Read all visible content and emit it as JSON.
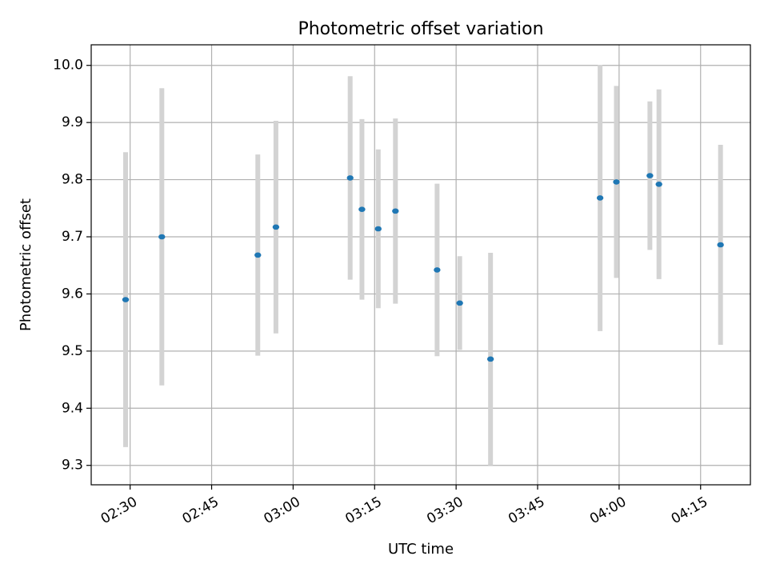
{
  "chart_data": {
    "type": "scatter",
    "title": "Photometric offset variation",
    "xlabel": "UTC time",
    "ylabel": "Photometric offset",
    "x_ticks": [
      "02:30",
      "02:45",
      "03:00",
      "03:15",
      "03:30",
      "03:45",
      "04:00",
      "04:15"
    ],
    "y_ticks": [
      "9.3",
      "9.4",
      "9.5",
      "9.6",
      "9.7",
      "9.8",
      "9.9",
      "10.0"
    ],
    "xlim": [
      "02:22:50",
      "04:24:10"
    ],
    "ylim": [
      9.266,
      10.036
    ],
    "grid": true,
    "colors": {
      "points": "#1f77b4",
      "errorbars": "#d3d3d3",
      "grid": "#b0b0b0"
    },
    "points": [
      {
        "x": "02:29:10",
        "y": 9.59,
        "yerr": 0.258
      },
      {
        "x": "02:35:50",
        "y": 9.7,
        "yerr": 0.26
      },
      {
        "x": "02:53:30",
        "y": 9.668,
        "yerr": 0.176
      },
      {
        "x": "02:56:50",
        "y": 9.717,
        "yerr": 0.186
      },
      {
        "x": "03:10:30",
        "y": 9.803,
        "yerr": 0.178
      },
      {
        "x": "03:12:40",
        "y": 9.748,
        "yerr": 0.158
      },
      {
        "x": "03:15:40",
        "y": 9.714,
        "yerr": 0.139
      },
      {
        "x": "03:18:50",
        "y": 9.745,
        "yerr": 0.162
      },
      {
        "x": "03:26:30",
        "y": 9.642,
        "yerr": 0.151
      },
      {
        "x": "03:30:40",
        "y": 9.584,
        "yerr": 0.082
      },
      {
        "x": "03:36:20",
        "y": 9.486,
        "yerr": 0.186
      },
      {
        "x": "03:56:30",
        "y": 9.768,
        "yerr": 0.233
      },
      {
        "x": "03:59:30",
        "y": 9.796,
        "yerr": 0.168
      },
      {
        "x": "04:05:40",
        "y": 9.807,
        "yerr": 0.13
      },
      {
        "x": "04:07:20",
        "y": 9.792,
        "yerr": 0.166
      },
      {
        "x": "04:18:40",
        "y": 9.686,
        "yerr": 0.175
      }
    ]
  }
}
